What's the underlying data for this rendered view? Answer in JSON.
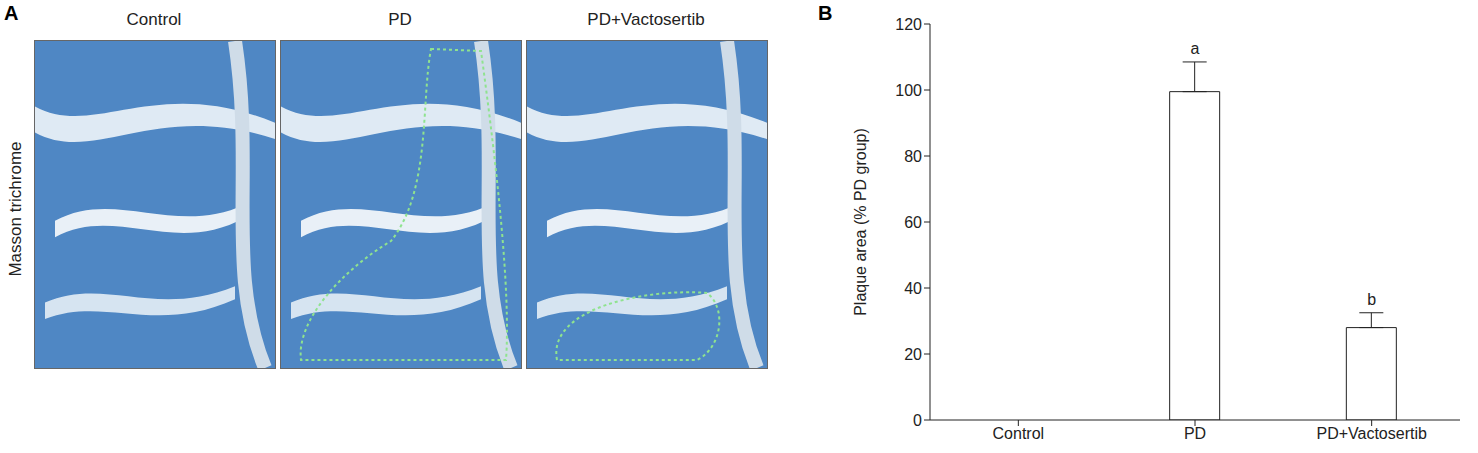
{
  "image_panel": {
    "label": "A",
    "row_label": "Masson trichrome",
    "titles": [
      "Control",
      "PD",
      "PD+Vactosertib"
    ]
  },
  "chart_data": {
    "label": "B",
    "type": "bar",
    "y_label": "Plaque area (% PD group)",
    "categories": [
      "Control",
      "PD",
      "PD+Vactosertib"
    ],
    "values": [
      0,
      99.5,
      28
    ],
    "errors": [
      0,
      9,
      4.5
    ],
    "annotations": [
      null,
      "a",
      "b"
    ],
    "color": "#ffffff",
    "ylim": [
      0,
      120
    ],
    "yticks": [
      0,
      20,
      40,
      60,
      80,
      100,
      120
    ],
    "grid": false
  }
}
